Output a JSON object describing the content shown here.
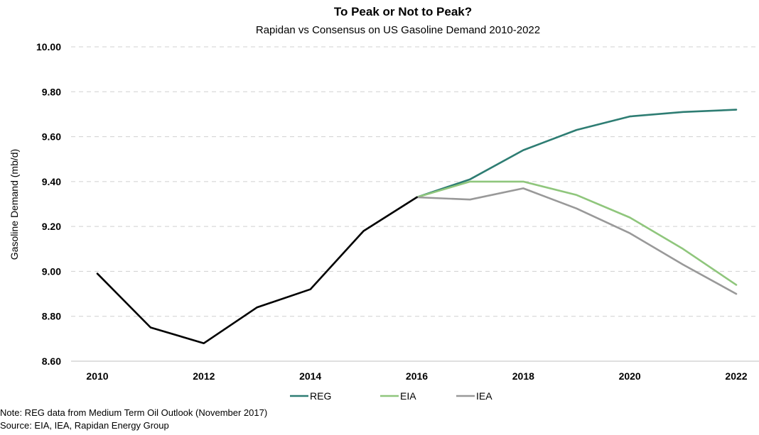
{
  "chart_data": {
    "type": "line",
    "title": "To Peak or Not to Peak?",
    "subtitle": "Rapidan vs Consensus on US Gasoline Demand 2010-2022",
    "xlabel": "",
    "ylabel": "Gasoline Demand (mb/d)",
    "xlim": [
      2010,
      2022
    ],
    "ylim": [
      8.6,
      10.0
    ],
    "x_ticks": [
      2010,
      2012,
      2014,
      2016,
      2018,
      2020,
      2022
    ],
    "y_ticks": [
      "8.60",
      "8.80",
      "9.00",
      "9.20",
      "9.40",
      "9.60",
      "9.80",
      "10.00"
    ],
    "grid": "horizontal dashed",
    "legend_position": "bottom",
    "series": [
      {
        "name": "",
        "color": "#000000",
        "x": [
          2010,
          2011,
          2012,
          2013,
          2014,
          2015,
          2016
        ],
        "values": [
          8.99,
          8.75,
          8.68,
          8.84,
          8.92,
          9.18,
          9.33
        ]
      },
      {
        "name": "REG",
        "color": "#2e7d73",
        "x": [
          2016,
          2017,
          2018,
          2019,
          2020,
          2021,
          2022
        ],
        "values": [
          9.33,
          9.41,
          9.54,
          9.63,
          9.69,
          9.71,
          9.72
        ]
      },
      {
        "name": "EIA",
        "color": "#8fc67c",
        "x": [
          2016,
          2017,
          2018,
          2019,
          2020,
          2021,
          2022
        ],
        "values": [
          9.33,
          9.4,
          9.4,
          9.34,
          9.24,
          9.1,
          8.94
        ]
      },
      {
        "name": "IEA",
        "color": "#999999",
        "x": [
          2016,
          2017,
          2018,
          2019,
          2020,
          2021,
          2022
        ],
        "values": [
          9.33,
          9.32,
          9.37,
          9.28,
          9.17,
          9.03,
          8.9
        ]
      }
    ]
  },
  "legend": [
    "REG",
    "EIA",
    "IEA"
  ],
  "notes": {
    "note": "Note: REG data from Medium Term Oil Outlook (November 2017)",
    "source": "Source: EIA, IEA, Rapidan Energy Group"
  }
}
